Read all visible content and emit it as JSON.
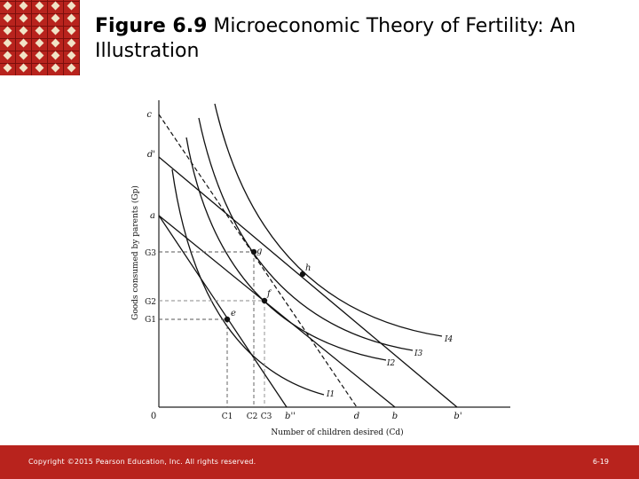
{
  "slide": {
    "title_fig": "Figure 6.9",
    "title_text": "Microeconomic Theory of Fertility: An Illustration"
  },
  "footer": {
    "copyright": "Copyright ©2015 Pearson Education, Inc. All rights reserved.",
    "page": "6-19"
  },
  "diagram": {
    "y_axis_label": "Goods consumed by parents (Gp)",
    "x_axis_label": "Number of children desired (Cd)",
    "origin": "0",
    "y_ticks": [
      "c",
      "d'",
      "a",
      "G3",
      "G2",
      "G1"
    ],
    "x_ticks": [
      "C1",
      "C2",
      "C3",
      "b''",
      "d",
      "b",
      "b'"
    ],
    "points": [
      "e",
      "f",
      "g",
      "h"
    ],
    "curves": [
      "I1",
      "I2",
      "I3",
      "I4"
    ]
  }
}
